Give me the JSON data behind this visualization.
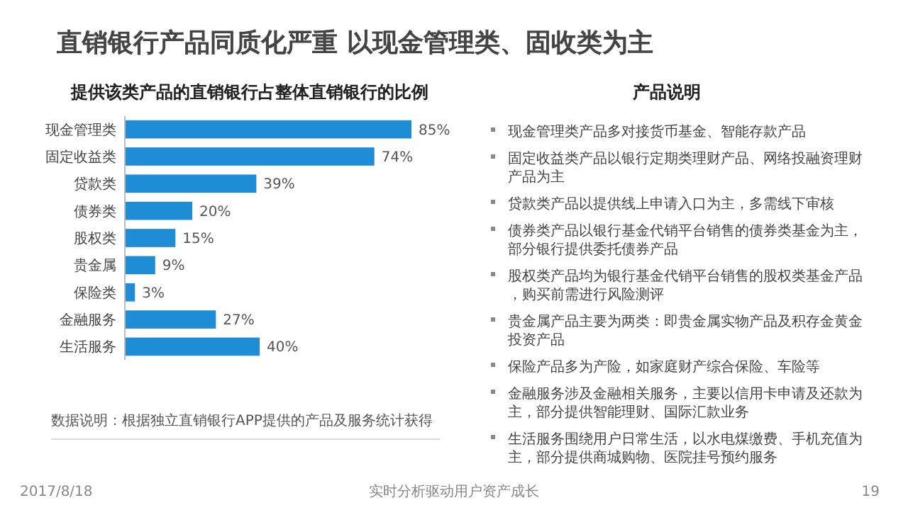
{
  "chart_data": [
    {
      "type": "bar",
      "orientation": "horizontal",
      "title": "直销银行产品同质化严重 以现金管理类、固收类为主",
      "subtitle": "提供该类产品的直销银行占整体直销银行的比例",
      "categories": [
        "现金管理类",
        "固定收益类",
        "贷款类",
        "债券类",
        "股权类",
        "贵金属",
        "保险类",
        "金融服务",
        "生活服务"
      ],
      "values": [
        85,
        74,
        39,
        20,
        15,
        9,
        3,
        27,
        40
      ],
      "value_labels": [
        "85%",
        "74%",
        "39%",
        "20%",
        "15%",
        "9%",
        "3%",
        "27%",
        "40%"
      ],
      "color": "#1f8dd6",
      "annotations": [
        "数据说明：根据独立直销银行APP提供的产品及服务统计获得",
        "2017/8/18",
        "实时分析驱动用户资产成长",
        "19"
      ]
    },
    {
      "type": "other",
      "title": "产品说明",
      "annotations": [
        "现金管理类产品多对接货币基金、智能存款产品",
        "固定收益类产品以银行定期类理财产品、网络投融资理财产品为主",
        "贷款类产品以提供线上申请入口为主，多需线下审核",
        "债券类产品以银行基金代销平台销售的债券类基金为主，部分银行提供委托债券产品",
        "股权类产品均为银行基金代销平台销售的股权类基金产品，购买前需进行风险测评",
        "贵金属产品主要为两类：即贵金属实物产品及积存金黄金投资产品",
        "保险产品多为产险，如家庭财产综合保险、车险等",
        "金融服务涉及金融相关服务，主要以信用卡申请及还款为主，部分提供智能理财、国际汇款业务",
        "生活服务围绕用户日常生活，以水电煤缴费、手机充值为主，部分提供商城购物、医院挂号预约服务"
      ]
    }
  ]
}
